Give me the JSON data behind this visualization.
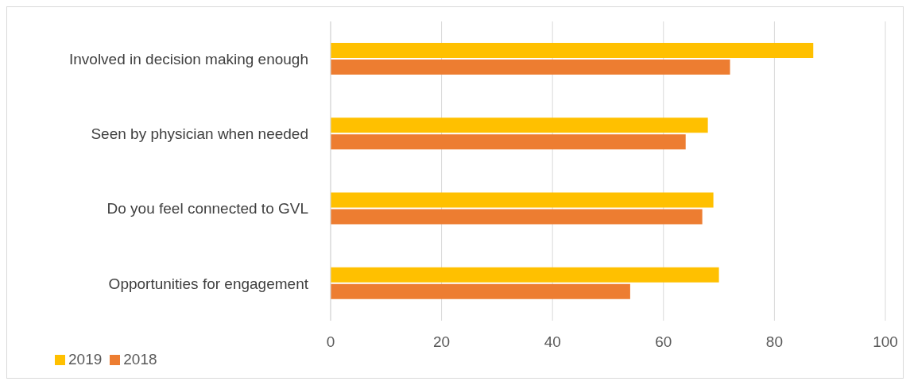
{
  "chart_data": {
    "type": "bar",
    "orientation": "horizontal",
    "categories": [
      "Involved in decision making enough",
      "Seen by physician when needed",
      "Do you feel connected to GVL",
      "Opportunities for engagement"
    ],
    "series": [
      {
        "name": "2019",
        "color": "#ffc000",
        "values": [
          87,
          68,
          69,
          70
        ]
      },
      {
        "name": "2018",
        "color": "#ed7d31",
        "values": [
          72,
          64,
          67,
          54
        ]
      }
    ],
    "xlim": [
      0,
      100
    ],
    "xticks": [
      0,
      20,
      40,
      60,
      80,
      100
    ],
    "grid": "x",
    "legend": "bottom left"
  }
}
